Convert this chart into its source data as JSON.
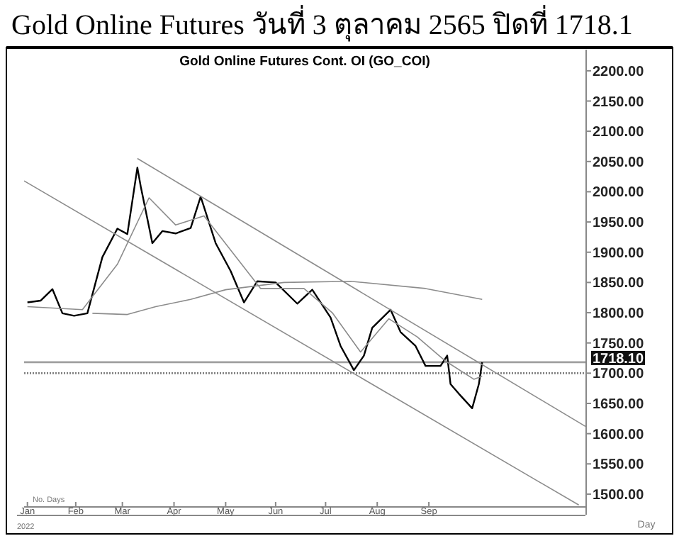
{
  "chart_data": {
    "type": "line",
    "title": "Gold Online Futures วันที่  3 ตุลาคม  2565 ปิดที่ 1718.1",
    "subtitle": "Gold Online Futures Cont. OI (GO_COI)",
    "xlabel": "Day",
    "annotations": [
      "No. Days",
      "2022"
    ],
    "xlim": [
      "2022-01-01",
      "2022-12-04"
    ],
    "xticks": [
      {
        "value": "2022-01-03",
        "label": "Jan"
      },
      {
        "value": "2022-02-01",
        "label": "Feb"
      },
      {
        "value": "2022-03-01",
        "label": "Mar"
      },
      {
        "value": "2022-04-01",
        "label": "Apr"
      },
      {
        "value": "2022-05-02",
        "label": "May"
      },
      {
        "value": "2022-06-01",
        "label": "Jun"
      },
      {
        "value": "2022-07-01",
        "label": "Jul"
      },
      {
        "value": "2022-08-01",
        "label": "Aug"
      },
      {
        "value": "2022-09-01",
        "label": "Sep"
      }
    ],
    "ylim": [
      1480,
      2235
    ],
    "yticks": [
      {
        "value": 1500,
        "label": "1500.00"
      },
      {
        "value": 1550,
        "label": "1550.00"
      },
      {
        "value": 1600,
        "label": "1600.00"
      },
      {
        "value": 1650,
        "label": "1650.00"
      },
      {
        "value": 1700,
        "label": "1700.00"
      },
      {
        "value": 1750,
        "label": "1750.00"
      },
      {
        "value": 1800,
        "label": "1800.00"
      },
      {
        "value": 1850,
        "label": "1850.00"
      },
      {
        "value": 1900,
        "label": "1900.00"
      },
      {
        "value": 1950,
        "label": "1950.00"
      },
      {
        "value": 2000,
        "label": "2000.00"
      },
      {
        "value": 2050,
        "label": "2050.00"
      },
      {
        "value": 2100,
        "label": "2100.00"
      },
      {
        "value": 2150,
        "label": "2150.00"
      },
      {
        "value": 2200,
        "label": "2200.00"
      }
    ],
    "grid": false,
    "marker": "none",
    "ref_lines": [
      {
        "axis": "y",
        "value": 1718.1,
        "label": "1718.10",
        "color": "#a0a0a0",
        "line_style": "solid"
      },
      {
        "axis": "y",
        "value": 1700,
        "color": "#808080",
        "line_style": "dotted"
      }
    ],
    "series": [
      {
        "color": "#000000",
        "x": [
          "2022-01-03",
          "2022-01-11",
          "2022-01-18",
          "2022-01-24",
          "2022-01-31",
          "2022-02-08",
          "2022-02-17",
          "2022-02-26",
          "2022-03-04",
          "2022-03-10",
          "2022-03-12",
          "2022-03-19",
          "2022-03-25",
          "2022-04-02",
          "2022-04-11",
          "2022-04-17",
          "2022-04-26",
          "2022-05-05",
          "2022-05-13",
          "2022-05-21",
          "2022-06-01",
          "2022-06-14",
          "2022-06-23",
          "2022-07-04",
          "2022-07-10",
          "2022-07-18",
          "2022-07-24",
          "2022-07-29",
          "2022-08-09",
          "2022-08-15",
          "2022-08-24",
          "2022-08-30",
          "2022-09-08",
          "2022-09-12",
          "2022-09-14",
          "2022-09-19",
          "2022-09-27",
          "2022-10-01",
          "2022-10-03"
        ],
        "values": [
          1817,
          1820,
          1839,
          1799,
          1795,
          1799,
          1892,
          1939,
          1930,
          2040,
          2009,
          1915,
          1935,
          1931,
          1940,
          1992,
          1915,
          1869,
          1817,
          1852,
          1850,
          1815,
          1838,
          1792,
          1745,
          1705,
          1729,
          1775,
          1805,
          1768,
          1745,
          1712,
          1712,
          1729,
          1682,
          1666,
          1642,
          1682,
          1718
        ]
      },
      {
        "color": "#8c8c8c",
        "x": [
          "2022-01-03",
          "2022-02-05",
          "2022-02-26",
          "2022-03-17",
          "2022-04-02",
          "2022-04-19",
          "2022-05-06",
          "2022-05-23",
          "2022-06-18",
          "2022-07-05",
          "2022-07-22",
          "2022-08-08",
          "2022-08-25",
          "2022-09-11",
          "2022-09-28",
          "2022-10-03"
        ],
        "values": [
          1810,
          1805,
          1880,
          1990,
          1945,
          1960,
          1900,
          1840,
          1840,
          1800,
          1735,
          1790,
          1760,
          1720,
          1690,
          1695
        ]
      },
      {
        "color": "#8c8c8c",
        "x": [
          "2022-02-11",
          "2022-03-04",
          "2022-03-21",
          "2022-04-11",
          "2022-05-02",
          "2022-06-06",
          "2022-07-16",
          "2022-08-30",
          "2022-10-03"
        ],
        "values": [
          1799,
          1797,
          1810,
          1822,
          1838,
          1850,
          1852,
          1840,
          1822
        ]
      },
      {
        "color": "#8c8c8c",
        "x": [
          "2022-03-10",
          "2022-12-04"
        ],
        "values": [
          2055,
          1612
        ]
      },
      {
        "color": "#8c8c8c",
        "x": [
          "2022-01-01",
          "2022-11-30"
        ],
        "values": [
          2018,
          1482
        ]
      }
    ]
  }
}
